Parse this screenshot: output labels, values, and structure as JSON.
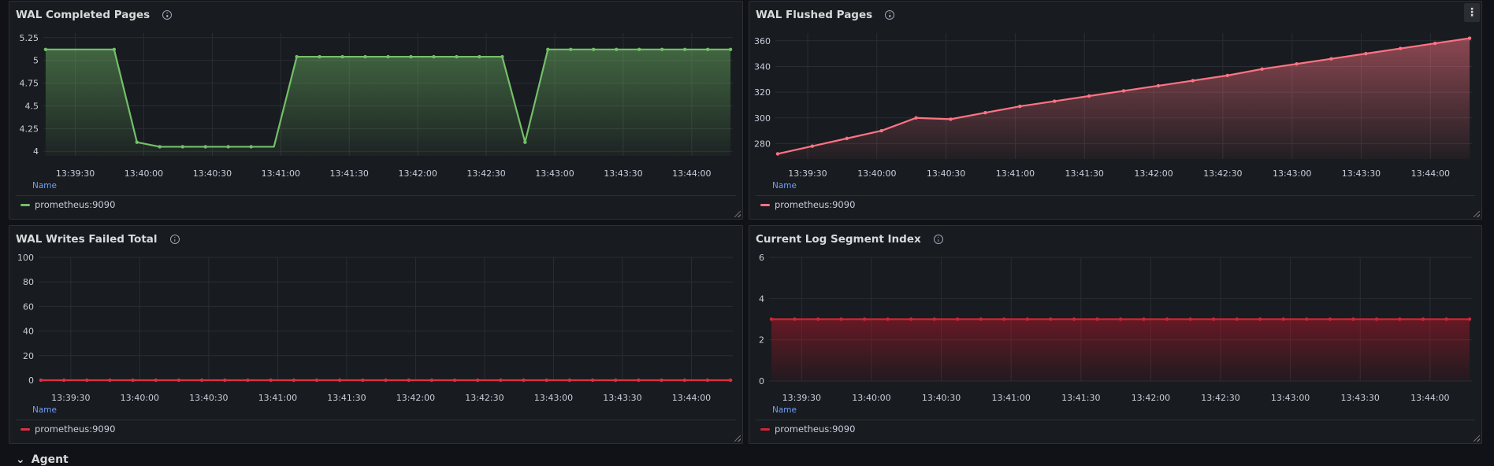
{
  "panels": [
    {
      "title": "WAL Completed Pages",
      "legend_header": "Name",
      "legend_label": "prometheus:9090",
      "color": "#73bf69",
      "fill_top": "rgba(115,191,105,0.45)",
      "fill_bottom": "rgba(115,191,105,0.05)",
      "show_menu": false
    },
    {
      "title": "WAL Flushed Pages",
      "legend_header": "Name",
      "legend_label": "prometheus:9090",
      "color": "#ff7383",
      "fill_top": "rgba(255,115,131,0.5)",
      "fill_bottom": "rgba(255,115,131,0.04)",
      "show_menu": true,
      "menu_icon": "⋮"
    },
    {
      "title": "WAL Writes Failed Total",
      "legend_header": "Name",
      "legend_label": "prometheus:9090",
      "color": "#e02f44",
      "fill_top": "rgba(224,47,68,0.0)",
      "fill_bottom": "rgba(224,47,68,0.0)",
      "show_menu": false
    },
    {
      "title": "Current Log Segment Index",
      "legend_header": "Name",
      "legend_label": "prometheus:9090",
      "color": "#d02538",
      "fill_top": "rgba(196,22,42,0.45)",
      "fill_bottom": "rgba(196,22,42,0.05)",
      "show_menu": false
    }
  ],
  "chart_data": [
    {
      "type": "area",
      "title": "WAL Completed Pages",
      "x": [
        "13:39:17",
        "13:39:27",
        "13:39:37",
        "13:39:47",
        "13:39:57",
        "13:40:07",
        "13:40:17",
        "13:40:27",
        "13:40:37",
        "13:40:47",
        "13:40:57",
        "13:41:07",
        "13:41:17",
        "13:41:27",
        "13:41:37",
        "13:41:47",
        "13:41:57",
        "13:42:07",
        "13:42:17",
        "13:42:27",
        "13:42:37",
        "13:42:47",
        "13:42:57",
        "13:43:07",
        "13:43:17",
        "13:43:27",
        "13:43:37",
        "13:43:47",
        "13:43:57",
        "13:44:07",
        "13:44:17"
      ],
      "series": [
        {
          "name": "prometheus:9090",
          "values": [
            5.12,
            5.12,
            5.12,
            5.12,
            4.1,
            4.05,
            4.05,
            4.05,
            4.05,
            4.05,
            4.05,
            5.04,
            5.04,
            5.04,
            5.04,
            5.04,
            5.04,
            5.04,
            5.04,
            5.04,
            5.04,
            4.1,
            5.12,
            5.12,
            5.12,
            5.12,
            5.12,
            5.12,
            5.12,
            5.12,
            5.12
          ]
        }
      ],
      "markers": [
        0,
        3,
        4,
        5,
        6,
        7,
        8,
        9,
        11,
        12,
        13,
        14,
        15,
        16,
        17,
        18,
        19,
        20,
        21,
        22,
        23,
        24,
        25,
        26,
        27,
        28,
        29,
        30
      ],
      "ylim": [
        3.95,
        5.3
      ],
      "yticks": [
        4,
        4.25,
        4.5,
        4.75,
        5,
        5.25
      ],
      "ytick_labels": [
        "4",
        "4.25",
        "4.5",
        "4.75",
        "5",
        "5.25"
      ],
      "xticks": [
        "13:39:30",
        "13:40:00",
        "13:40:30",
        "13:41:00",
        "13:41:30",
        "13:42:00",
        "13:42:30",
        "13:43:00",
        "13:43:30",
        "13:44:00"
      ],
      "grid": true,
      "legend": "bottom"
    },
    {
      "type": "area",
      "title": "WAL Flushed Pages",
      "x": [
        "13:39:17",
        "13:39:32",
        "13:39:47",
        "13:40:02",
        "13:40:17",
        "13:40:32",
        "13:40:47",
        "13:41:02",
        "13:41:17",
        "13:41:32",
        "13:41:47",
        "13:42:02",
        "13:42:17",
        "13:42:32",
        "13:42:47",
        "13:43:02",
        "13:43:17",
        "13:43:32",
        "13:43:47",
        "13:44:02",
        "13:44:17"
      ],
      "series": [
        {
          "name": "prometheus:9090",
          "values": [
            272,
            278,
            284,
            290,
            300,
            299,
            304,
            309,
            313,
            317,
            321,
            325,
            329,
            333,
            338,
            342,
            346,
            350,
            354,
            358,
            362
          ]
        }
      ],
      "ylim": [
        268,
        366
      ],
      "yticks": [
        280,
        300,
        320,
        340,
        360
      ],
      "ytick_labels": [
        "280",
        "300",
        "320",
        "340",
        "360"
      ],
      "xticks": [
        "13:39:30",
        "13:40:00",
        "13:40:30",
        "13:41:00",
        "13:41:30",
        "13:42:00",
        "13:42:30",
        "13:43:00",
        "13:43:30",
        "13:44:00"
      ],
      "grid": true,
      "legend": "bottom"
    },
    {
      "type": "line",
      "title": "WAL Writes Failed Total",
      "x": [
        "13:39:17",
        "13:39:27",
        "13:39:37",
        "13:39:47",
        "13:39:57",
        "13:40:07",
        "13:40:17",
        "13:40:27",
        "13:40:37",
        "13:40:47",
        "13:40:57",
        "13:41:07",
        "13:41:17",
        "13:41:27",
        "13:41:37",
        "13:41:47",
        "13:41:57",
        "13:42:07",
        "13:42:17",
        "13:42:27",
        "13:42:37",
        "13:42:47",
        "13:42:57",
        "13:43:07",
        "13:43:17",
        "13:43:27",
        "13:43:37",
        "13:43:47",
        "13:43:57",
        "13:44:07",
        "13:44:17"
      ],
      "series": [
        {
          "name": "prometheus:9090",
          "values": [
            0,
            0,
            0,
            0,
            0,
            0,
            0,
            0,
            0,
            0,
            0,
            0,
            0,
            0,
            0,
            0,
            0,
            0,
            0,
            0,
            0,
            0,
            0,
            0,
            0,
            0,
            0,
            0,
            0,
            0,
            0
          ]
        }
      ],
      "ylim": [
        0,
        100
      ],
      "yticks": [
        0,
        20,
        40,
        60,
        80,
        100
      ],
      "ytick_labels": [
        "0",
        "20",
        "40",
        "60",
        "80",
        "100"
      ],
      "xticks": [
        "13:39:30",
        "13:40:00",
        "13:40:30",
        "13:41:00",
        "13:41:30",
        "13:42:00",
        "13:42:30",
        "13:43:00",
        "13:43:30",
        "13:44:00"
      ],
      "grid": true,
      "legend": "bottom"
    },
    {
      "type": "area",
      "title": "Current Log Segment Index",
      "x": [
        "13:39:17",
        "13:39:27",
        "13:39:37",
        "13:39:47",
        "13:39:57",
        "13:40:07",
        "13:40:17",
        "13:40:27",
        "13:40:37",
        "13:40:47",
        "13:40:57",
        "13:41:07",
        "13:41:17",
        "13:41:27",
        "13:41:37",
        "13:41:47",
        "13:41:57",
        "13:42:07",
        "13:42:17",
        "13:42:27",
        "13:42:37",
        "13:42:47",
        "13:42:57",
        "13:43:07",
        "13:43:17",
        "13:43:27",
        "13:43:37",
        "13:43:47",
        "13:43:57",
        "13:44:07",
        "13:44:17"
      ],
      "series": [
        {
          "name": "prometheus:9090",
          "values": [
            3,
            3,
            3,
            3,
            3,
            3,
            3,
            3,
            3,
            3,
            3,
            3,
            3,
            3,
            3,
            3,
            3,
            3,
            3,
            3,
            3,
            3,
            3,
            3,
            3,
            3,
            3,
            3,
            3,
            3,
            3
          ]
        }
      ],
      "ylim": [
        0,
        6
      ],
      "yticks": [
        0,
        2,
        4,
        6
      ],
      "ytick_labels": [
        "0",
        "2",
        "4",
        "6"
      ],
      "xticks": [
        "13:39:30",
        "13:40:00",
        "13:40:30",
        "13:41:00",
        "13:41:30",
        "13:42:00",
        "13:42:30",
        "13:43:00",
        "13:43:30",
        "13:44:00"
      ],
      "grid": true,
      "legend": "bottom"
    }
  ],
  "row": {
    "chevron": "⌄",
    "title": "Agent"
  }
}
